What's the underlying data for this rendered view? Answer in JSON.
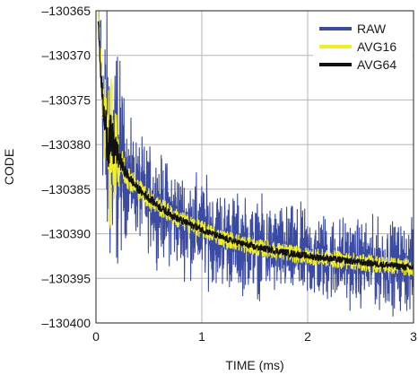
{
  "chart_data": {
    "type": "line",
    "title": "",
    "xlabel": "TIME (ms)",
    "ylabel": "CODE",
    "xlim": [
      0,
      3
    ],
    "ylim": [
      -130400,
      -130365
    ],
    "x_ticks": [
      0,
      1,
      2,
      3
    ],
    "x_tick_labels": [
      "0",
      "1",
      "2",
      "3"
    ],
    "y_ticks": [
      -130365,
      -130370,
      -130375,
      -130380,
      -130385,
      -130390,
      -130395,
      -130400
    ],
    "y_tick_labels": [
      "–130365",
      "–130370",
      "–130375",
      "–130380",
      "–130385",
      "–130390",
      "–130395",
      "–130400"
    ],
    "grid": true,
    "legend_position": "top-right",
    "series": [
      {
        "name": "RAW",
        "color": "#3b4ba3",
        "x": [
          0.02,
          0.05,
          0.08,
          0.1,
          0.15,
          0.2,
          0.25,
          0.3,
          0.4,
          0.5,
          0.6,
          0.8,
          1.0,
          1.2,
          1.5,
          2.0,
          2.5,
          3.0
        ],
        "values": [
          -130365,
          -130372,
          -130378,
          -130379,
          -130382,
          -130381,
          -130382.5,
          -130383.5,
          -130385,
          -130386,
          -130387,
          -130388.5,
          -130389.5,
          -130390.5,
          -130391.5,
          -130392.5,
          -130393.2,
          -130393.8
        ],
        "noise_band": [
          [
            0.02,
            -130360,
            -130370
          ],
          [
            0.1,
            -130370,
            -130400
          ],
          [
            0.2,
            -130372,
            -130400
          ],
          [
            0.3,
            -130378,
            -130390
          ],
          [
            0.5,
            -130380,
            -130392
          ],
          [
            1.0,
            -130384,
            -130396
          ],
          [
            1.5,
            -130386,
            -130397
          ],
          [
            2.0,
            -130387,
            -130398
          ],
          [
            2.5,
            -130388,
            -130398
          ],
          [
            3.0,
            -130388.5,
            -130399
          ]
        ]
      },
      {
        "name": "AVG16",
        "color": "#f2ee2a",
        "x": [
          0.02,
          0.05,
          0.08,
          0.1,
          0.12,
          0.15,
          0.2,
          0.25,
          0.3,
          0.4,
          0.5,
          0.6,
          0.8,
          1.0,
          1.2,
          1.5,
          2.0,
          2.5,
          3.0
        ],
        "values": [
          -130365,
          -130372,
          -130378,
          -130376,
          -130383,
          -130380,
          -130381,
          -130382.5,
          -130383.5,
          -130385,
          -130386,
          -130387,
          -130388.5,
          -130389.5,
          -130390.5,
          -130391.5,
          -130392.5,
          -130393.2,
          -130393.8
        ],
        "amplitude": [
          1,
          2,
          4,
          6,
          9,
          8,
          4,
          2,
          1.5,
          1.3,
          1.2,
          1.1,
          1.1,
          1.0,
          1.0,
          1.0,
          1.0,
          1.0,
          1.0
        ]
      },
      {
        "name": "AVG64",
        "color": "#111111",
        "x": [
          0.02,
          0.05,
          0.08,
          0.1,
          0.12,
          0.15,
          0.2,
          0.25,
          0.3,
          0.4,
          0.5,
          0.6,
          0.8,
          1.0,
          1.2,
          1.5,
          2.0,
          2.5,
          3.0
        ],
        "values": [
          -130366,
          -130373,
          -130377.5,
          -130378.5,
          -130379.5,
          -130380,
          -130381,
          -130382.5,
          -130383.5,
          -130385,
          -130386,
          -130387,
          -130388.5,
          -130389.5,
          -130390.5,
          -130391.5,
          -130392.5,
          -130393.2,
          -130393.8
        ],
        "amplitude": [
          0.5,
          1,
          2,
          3,
          3.5,
          3,
          1.5,
          0.8,
          0.6,
          0.5,
          0.5,
          0.45,
          0.45,
          0.4,
          0.4,
          0.4,
          0.4,
          0.4,
          0.4
        ]
      }
    ]
  }
}
